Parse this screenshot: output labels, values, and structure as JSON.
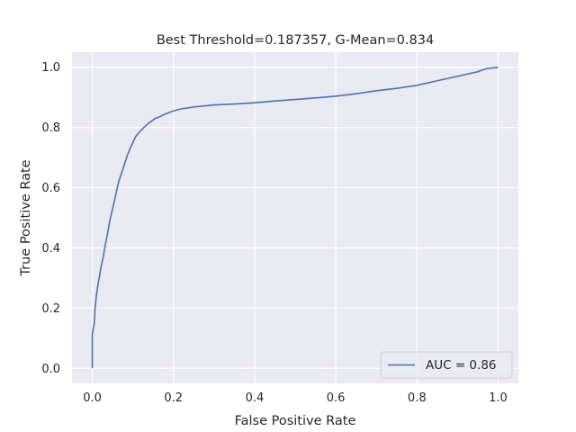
{
  "chart_data": {
    "type": "line",
    "title": "Best Threshold=0.187357, G-Mean=0.834",
    "xlabel": "False Positive Rate",
    "ylabel": "True Positive Rate",
    "xlim": [
      -0.05,
      1.05
    ],
    "ylim": [
      -0.05,
      1.05
    ],
    "xticks": [
      0.0,
      0.2,
      0.4,
      0.6,
      0.8,
      1.0
    ],
    "yticks": [
      0.0,
      0.2,
      0.4,
      0.6,
      0.8,
      1.0
    ],
    "xtick_labels": [
      "0.0",
      "0.2",
      "0.4",
      "0.6",
      "0.8",
      "1.0"
    ],
    "ytick_labels": [
      "0.0",
      "0.2",
      "0.4",
      "0.6",
      "0.8",
      "1.0"
    ],
    "grid": true,
    "legend_position": "bottom-right",
    "colors": {
      "background": "#EAEAF2",
      "grid": "#FFFFFF",
      "line": "#4C72B0",
      "text": "#262626"
    },
    "series": [
      {
        "name": "AUC = 0.86",
        "x": [
          0.0,
          0.0,
          0.002,
          0.005,
          0.007,
          0.01,
          0.013,
          0.017,
          0.022,
          0.027,
          0.032,
          0.038,
          0.043,
          0.05,
          0.055,
          0.06,
          0.065,
          0.07,
          0.075,
          0.08,
          0.087,
          0.093,
          0.1,
          0.107,
          0.113,
          0.12,
          0.127,
          0.135,
          0.145,
          0.155,
          0.165,
          0.18,
          0.2,
          0.22,
          0.25,
          0.3,
          0.35,
          0.4,
          0.45,
          0.5,
          0.55,
          0.6,
          0.65,
          0.7,
          0.75,
          0.8,
          0.85,
          0.9,
          0.95,
          0.97,
          1.0
        ],
        "y": [
          0.0,
          0.11,
          0.13,
          0.15,
          0.2,
          0.24,
          0.27,
          0.3,
          0.34,
          0.37,
          0.41,
          0.45,
          0.49,
          0.53,
          0.56,
          0.59,
          0.62,
          0.64,
          0.66,
          0.68,
          0.71,
          0.73,
          0.75,
          0.77,
          0.78,
          0.79,
          0.8,
          0.81,
          0.82,
          0.83,
          0.835,
          0.845,
          0.855,
          0.862,
          0.868,
          0.875,
          0.878,
          0.882,
          0.888,
          0.893,
          0.898,
          0.904,
          0.912,
          0.922,
          0.93,
          0.94,
          0.955,
          0.97,
          0.985,
          0.995,
          1.0
        ]
      }
    ]
  }
}
